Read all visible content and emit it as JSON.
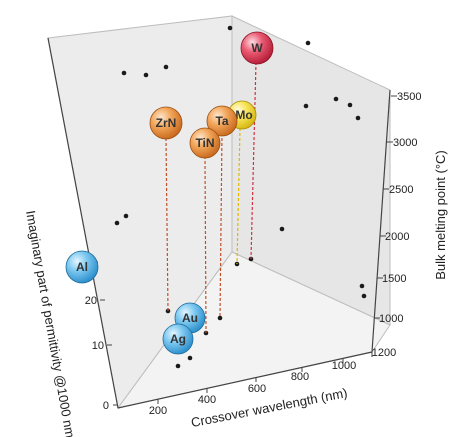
{
  "chart_data": {
    "type": "scatter",
    "title": "",
    "xlabel": "Crossover wavelength (nm)",
    "ylabel": "Bulk melting point (°C)",
    "zlabel": "Imaginary part of permittivity @1000 nm",
    "x_ticks": [
      "200",
      "400",
      "600",
      "800",
      "1000",
      "1200"
    ],
    "y_ticks": [
      "1000",
      "1500",
      "2000",
      "2500",
      "3000",
      "3500"
    ],
    "z_ticks": [
      "0",
      "10",
      "20",
      "30"
    ],
    "colors": {
      "Al": "#5fb4e6",
      "Au": "#5fb4e6",
      "Ag": "#5fb4e6",
      "ZrN": "#ee9a48",
      "TiN": "#ee9a48",
      "Ta": "#ee9a48",
      "Mo": "#f7e23e",
      "W": "#e43f57"
    },
    "materials": [
      {
        "name": "Al",
        "xlabel_pos": "wall"
      },
      {
        "name": "Au"
      },
      {
        "name": "Ag"
      },
      {
        "name": "ZrN"
      },
      {
        "name": "TiN"
      },
      {
        "name": "Ta"
      },
      {
        "name": "Mo"
      },
      {
        "name": "W"
      }
    ]
  }
}
